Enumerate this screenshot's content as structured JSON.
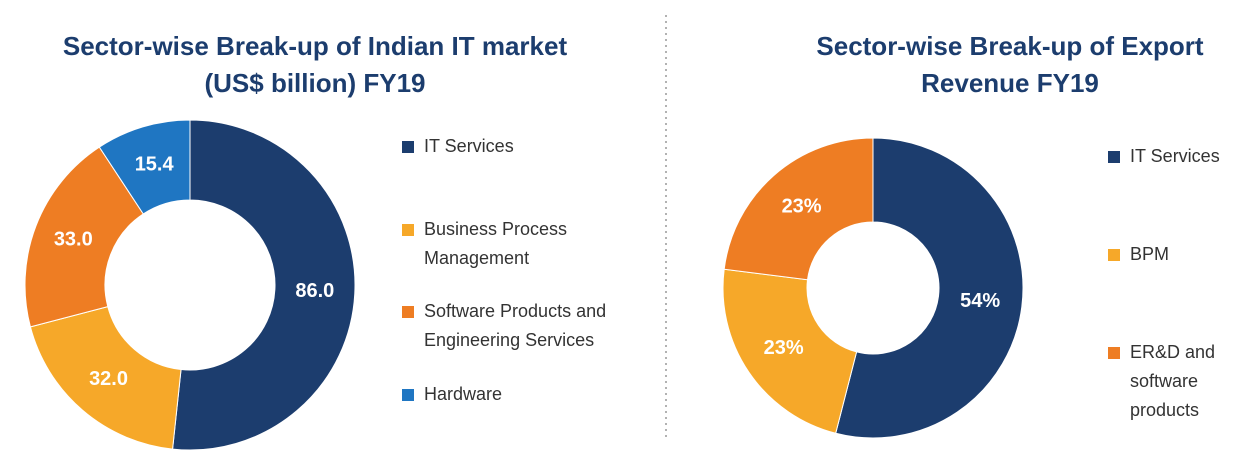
{
  "chart_data": [
    {
      "type": "donut",
      "title": "Sector-wise Break-up of Indian IT market (US$ billion) FY19",
      "categories": [
        "IT Services",
        "Business Process Management",
        "Software Products and Engineering Services",
        "Hardware"
      ],
      "values": [
        86.0,
        32.0,
        33.0,
        15.4
      ],
      "value_labels": [
        "86.0",
        "32.0",
        "33.0",
        "15.4"
      ],
      "colors": [
        "#1c3d6e",
        "#f6a829",
        "#ee7d23",
        "#1f76c2"
      ],
      "legend": "right"
    },
    {
      "type": "donut",
      "title": "Sector-wise Break-up of Export Revenue FY19",
      "categories": [
        "IT Services",
        "BPM",
        "ER&D and software products"
      ],
      "values": [
        54,
        23,
        23
      ],
      "value_labels": [
        "54%",
        "23%",
        "23%"
      ],
      "colors": [
        "#1c3d6e",
        "#f6a829",
        "#ee7d23"
      ],
      "legend": "right"
    }
  ]
}
